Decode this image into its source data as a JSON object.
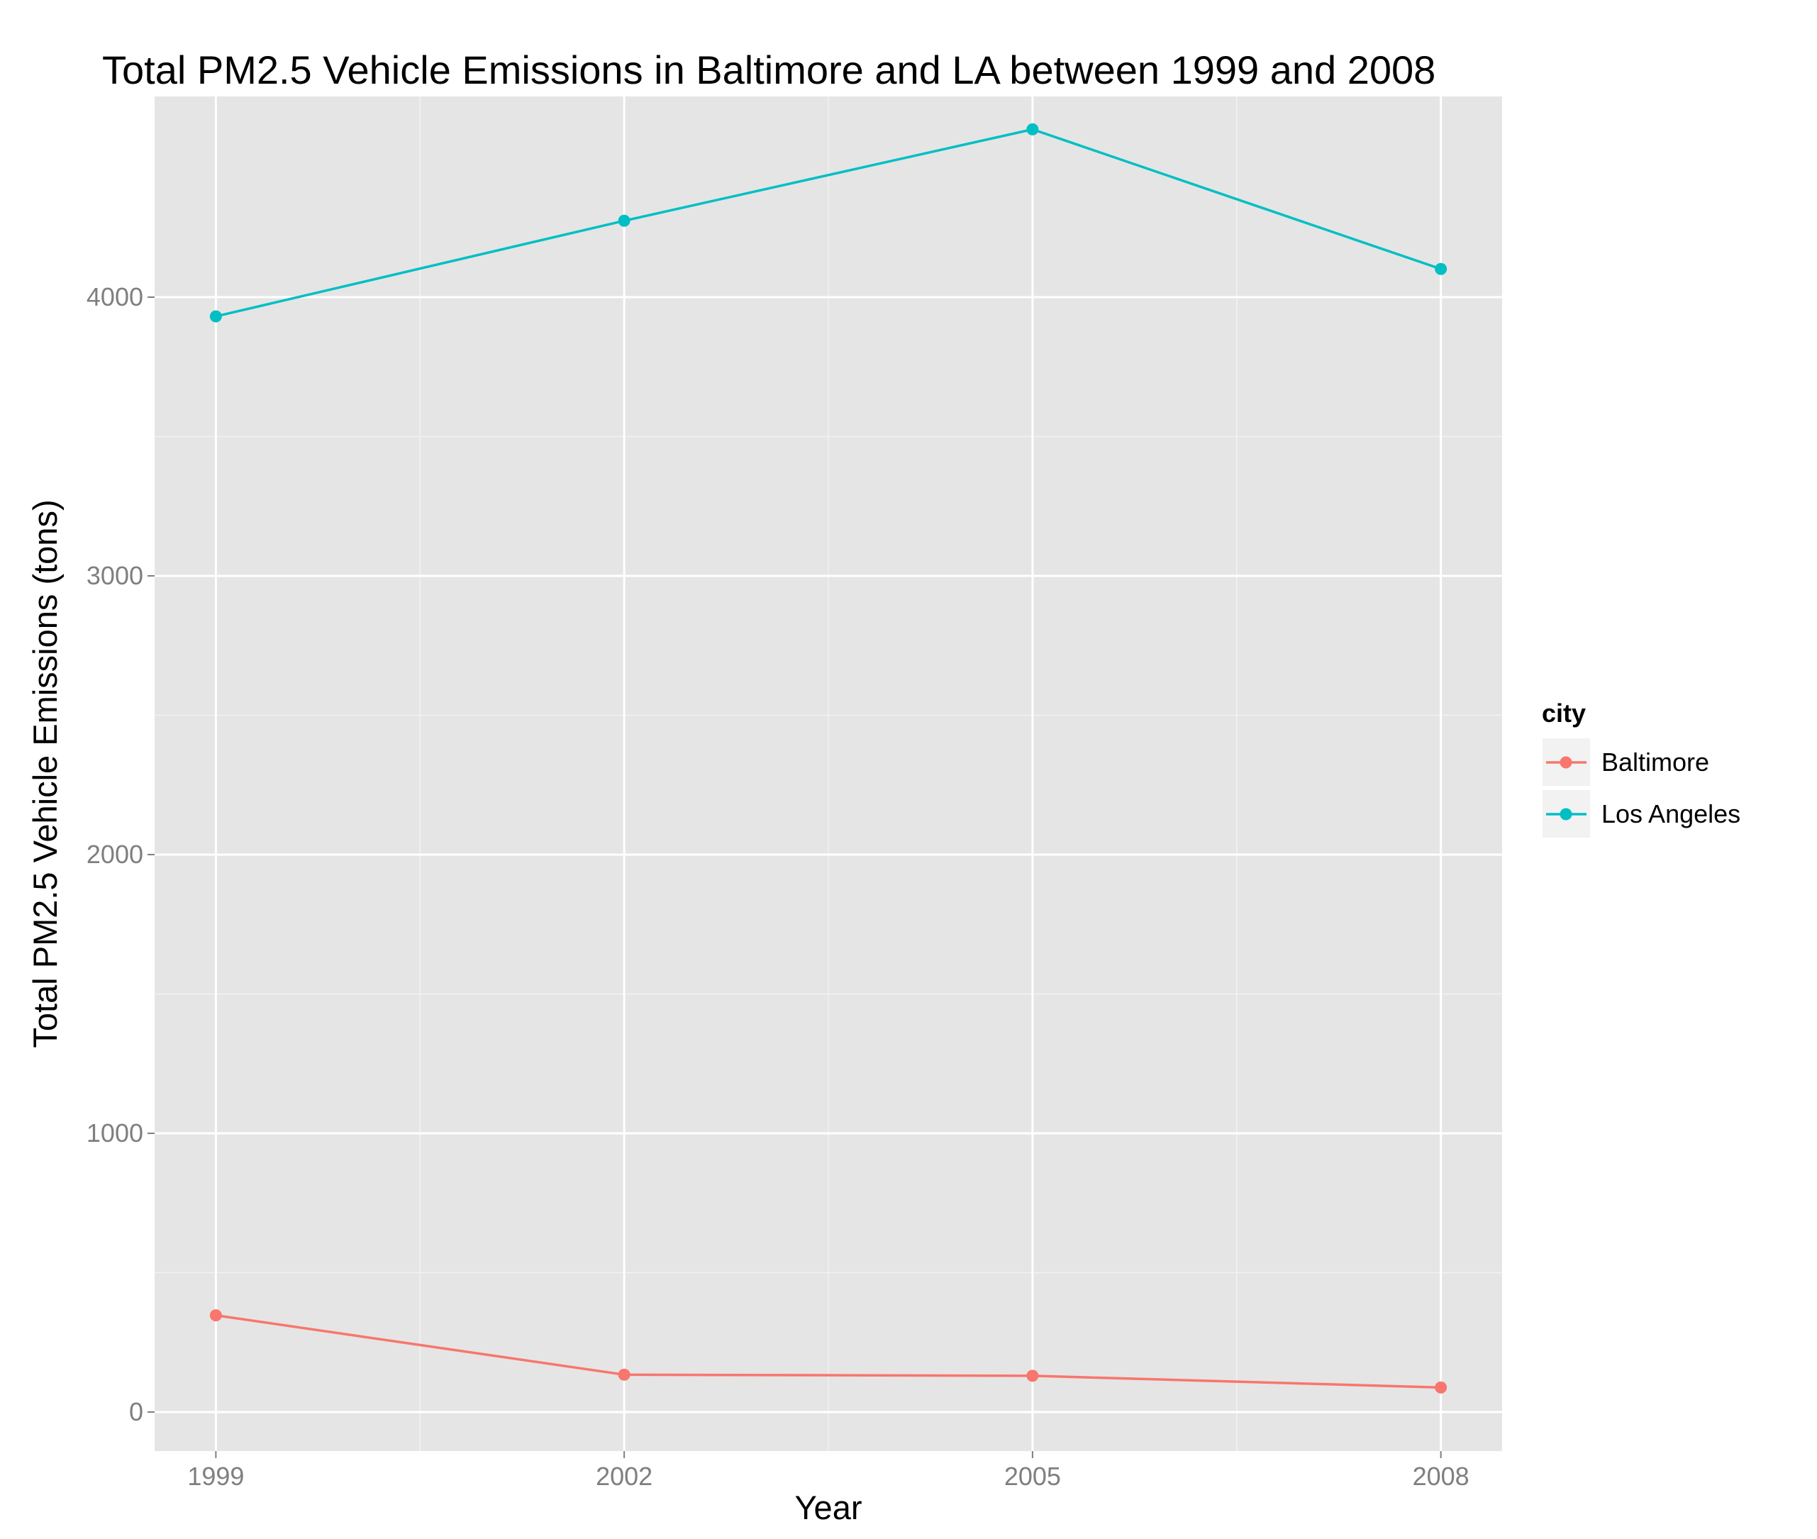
{
  "chart_data": {
    "type": "line",
    "title": "Total PM2.5 Vehicle Emissions in Baltimore and LA between 1999 and 2008",
    "xlabel": "Year",
    "ylabel": "Total PM2.5 Vehicle Emissions (tons)",
    "x": [
      1999,
      2002,
      2005,
      2008
    ],
    "x_tick_labels": [
      "1999",
      "2002",
      "2005",
      "2008"
    ],
    "y_ticks": [
      0,
      1000,
      2000,
      3000,
      4000
    ],
    "y_tick_labels": [
      "0",
      "1000",
      "2000",
      "3000",
      "4000"
    ],
    "xlim": [
      1998.55,
      2008.45
    ],
    "ylim": [
      -140,
      4720
    ],
    "grid": true,
    "panel_background": "#e5e5e5",
    "legend": {
      "title": "city",
      "placement": "right"
    },
    "series": [
      {
        "name": "Baltimore",
        "color": "#f8766d",
        "values": [
          347,
          134,
          130,
          88
        ]
      },
      {
        "name": "Los Angeles",
        "color": "#00bfc4",
        "values": [
          3931,
          4274,
          4602,
          4101
        ]
      }
    ]
  }
}
